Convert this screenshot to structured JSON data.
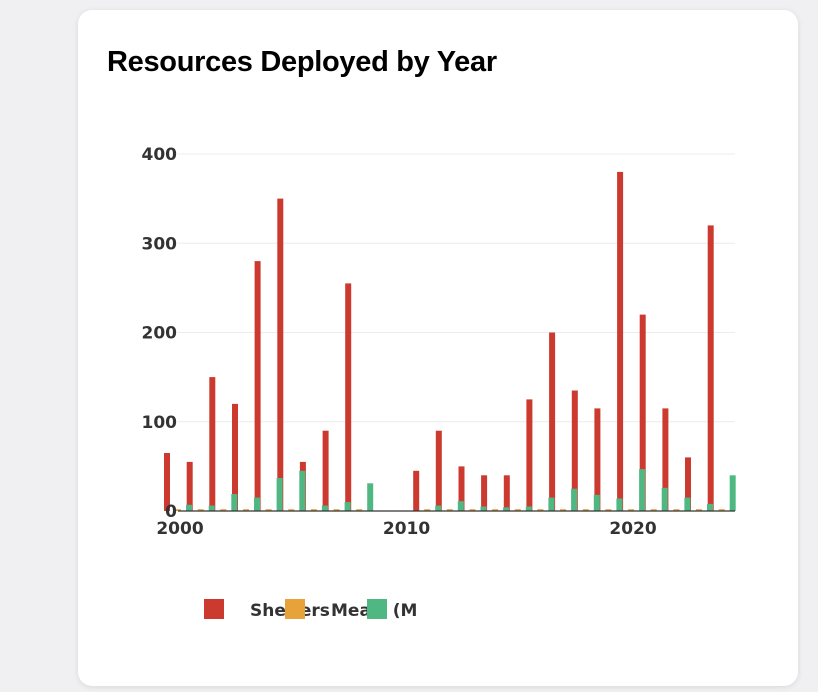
{
  "card": {
    "title": "Resources Deployed by Year"
  },
  "chart_data": {
    "type": "bar",
    "title": "Resources Deployed by Year",
    "xlabel": "",
    "ylabel": "",
    "ylim": [
      0,
      400
    ],
    "y_ticks": [
      0,
      100,
      200,
      300,
      400
    ],
    "x_ticks": [
      2000,
      2010,
      2020
    ],
    "grid": true,
    "legend_position": "bottom",
    "x": [
      2000,
      2001,
      2002,
      2003,
      2004,
      2005,
      2006,
      2007,
      2008,
      2009,
      2010,
      2011,
      2012,
      2013,
      2014,
      2015,
      2016,
      2017,
      2018,
      2019,
      2020,
      2021,
      2022,
      2023,
      2024
    ],
    "series": [
      {
        "name": "Shelters",
        "color": "#cc3a2f",
        "values": [
          65,
          55,
          150,
          120,
          280,
          350,
          55,
          90,
          255,
          0,
          0,
          45,
          90,
          50,
          40,
          40,
          125,
          200,
          135,
          115,
          380,
          220,
          115,
          60,
          320
        ]
      },
      {
        "name": "",
        "color": "#e8a23a",
        "values": [
          2,
          2,
          2,
          2,
          2,
          2,
          2,
          2,
          2,
          0,
          0,
          2,
          2,
          2,
          2,
          2,
          2,
          2,
          2,
          2,
          2,
          2,
          2,
          2,
          2
        ]
      },
      {
        "name": "",
        "color": "#4fb882",
        "values": [
          7,
          6,
          19,
          15,
          37,
          45,
          6,
          10,
          31,
          0,
          0,
          6,
          11,
          5,
          4,
          5,
          15,
          25,
          18,
          14,
          47,
          26,
          15,
          8,
          40
        ]
      }
    ],
    "legend": {
      "labels": [
        "Shelters",
        "Meals (M"
      ]
    }
  }
}
